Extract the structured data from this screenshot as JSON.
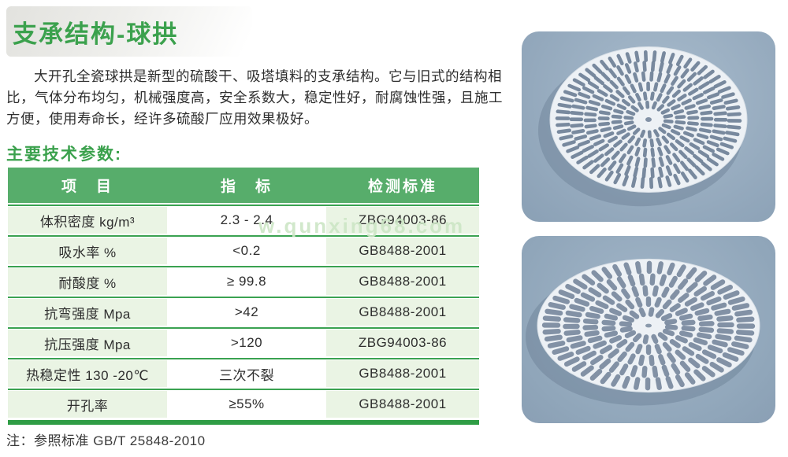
{
  "page": {
    "title": "支承结构-球拱",
    "intro": "大开孔全瓷球拱是新型的硫酸干、吸塔填料的支承结构。它与旧式的结构相比，气体分布均匀，机械强度高，安全系数大，稳定性好，耐腐蚀性强，且施工方便，使用寿命长，经许多硫酸厂应用效果极好。",
    "section_title": "主要技术参数:",
    "note": "注：参照标准 GB/T 25848-2010",
    "watermark": "w.qunxing68.com"
  },
  "table": {
    "headers": [
      "项　目",
      "指　标",
      "检测标准"
    ],
    "rows": [
      [
        "体积密度 kg/m³",
        "2.3 - 2.4",
        "ZBG94003-86"
      ],
      [
        "吸水率 %",
        "<0.2",
        "GB8488-2001"
      ],
      [
        "耐酸度 %",
        "≥ 99.8",
        "GB8488-2001"
      ],
      [
        "抗弯强度 Mpa",
        ">42",
        "GB8488-2001"
      ],
      [
        "抗压强度 Mpa",
        ">120",
        "ZBG94003-86"
      ],
      [
        "热稳定性 130 -20℃",
        "三次不裂",
        "GB8488-2001"
      ],
      [
        "开孔率",
        "≥55%",
        "GB8488-2001"
      ]
    ]
  },
  "images": {
    "photo1_icon": "ceramic-ball-arch-grid-photo-1",
    "photo2_icon": "ceramic-ball-arch-grid-photo-2"
  },
  "colors": {
    "accent_green": "#3ba14d",
    "header_green": "#57ad6b",
    "cell_light_green": "#eaf4e4",
    "rule_green": "#3aa251",
    "bottom_bar_green": "#2f9d45",
    "panel_blue_gray": "#97abbf",
    "dome_white": "#edf1f5",
    "slot_gray": "#6e8096"
  }
}
